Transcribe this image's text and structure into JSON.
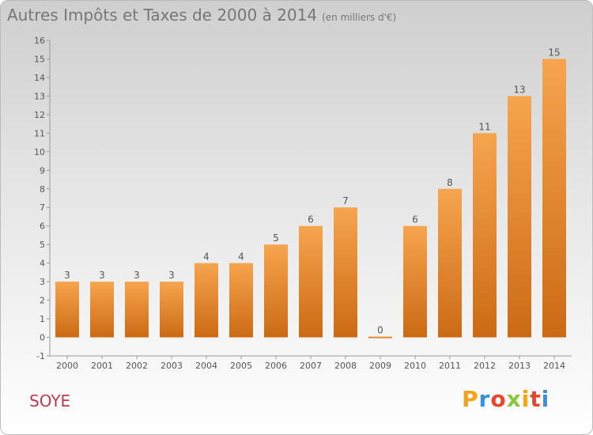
{
  "title": "Autres Impôts et Taxes de 2000 à 2014",
  "subtitle": "(en milliers d'€)",
  "commune": "SOYE",
  "logo": {
    "letters": [
      "P",
      "r",
      "o",
      "x",
      "i",
      "t",
      "i"
    ],
    "colors": [
      "#f7a21b",
      "#3a8fd9",
      "#e8452c",
      "#8cc63f",
      "#f7a21b",
      "#e8452c",
      "#3a8fd9"
    ]
  },
  "colors": {
    "bar_top": "#f6a54e",
    "bar_bottom": "#cc6a14",
    "text": "#555555",
    "title": "#777777",
    "commune": "#c0394b"
  },
  "chart_data": {
    "type": "bar",
    "categories": [
      "2000",
      "2001",
      "2002",
      "2003",
      "2004",
      "2005",
      "2006",
      "2007",
      "2008",
      "2009",
      "2010",
      "2011",
      "2012",
      "2013",
      "2014"
    ],
    "values": [
      3,
      3,
      3,
      3,
      4,
      4,
      5,
      6,
      7,
      0,
      6,
      8,
      11,
      13,
      15
    ],
    "yticks": [
      "-1",
      "0",
      "1",
      "2",
      "3",
      "4",
      "5",
      "6",
      "7",
      "8",
      "9",
      "10",
      "11",
      "12",
      "13",
      "14",
      "15",
      "16"
    ],
    "ylim": [
      -1,
      16
    ],
    "grid": false,
    "data_labels": true
  }
}
